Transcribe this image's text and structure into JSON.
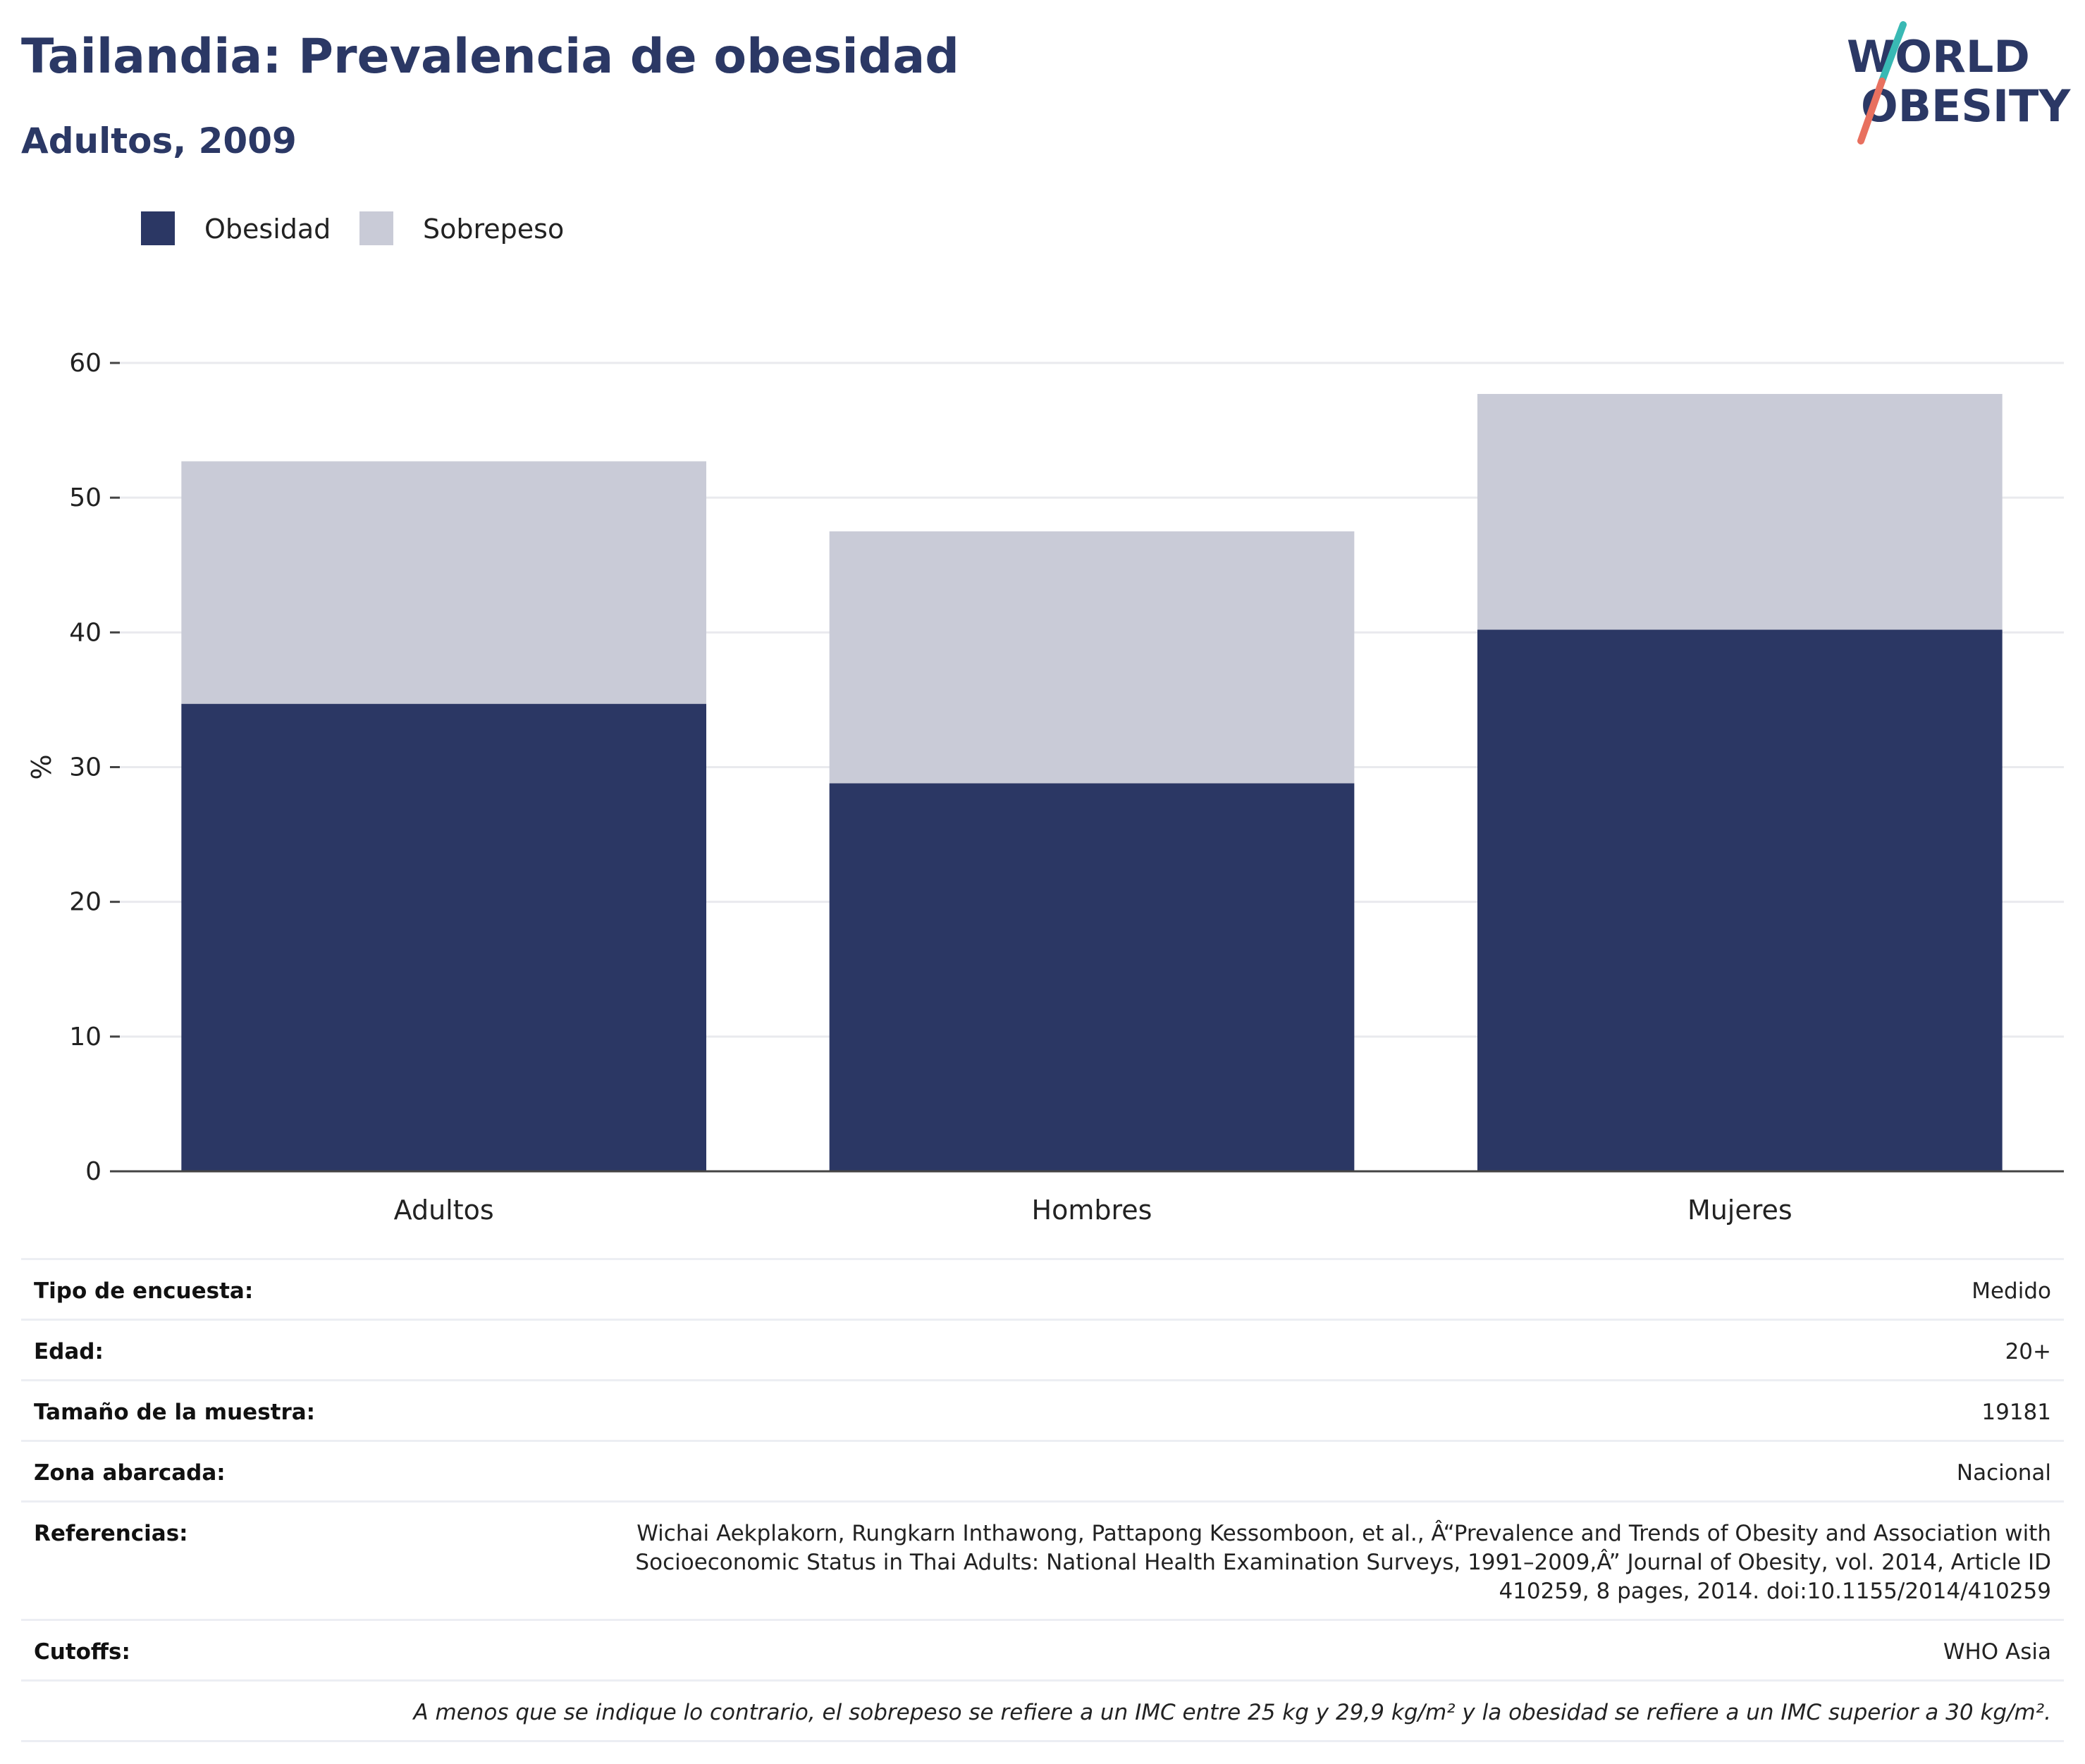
{
  "header": {
    "title": "Tailandia: Prevalencia de obesidad",
    "subtitle": "Adultos, 2009"
  },
  "logo": {
    "line1": "WORLD",
    "line2": "OBESITY",
    "colors": {
      "text": "#2b3865",
      "slash_top": "#39b9b4",
      "slash_bottom": "#e8705f"
    }
  },
  "legend": [
    {
      "label": "Obesidad",
      "color": "#2b3764"
    },
    {
      "label": "Sobrepeso",
      "color": "#c9cbd7"
    }
  ],
  "chart_data": {
    "type": "bar",
    "stacked": true,
    "categories": [
      "Adultos",
      "Hombres",
      "Mujeres"
    ],
    "series": [
      {
        "name": "Obesidad",
        "color": "#2b3764",
        "values": [
          34.7,
          28.8,
          40.2
        ]
      },
      {
        "name": "Sobrepeso",
        "color": "#c9cbd7",
        "values": [
          18.0,
          18.7,
          17.5
        ]
      }
    ],
    "ylabel": "%",
    "xlabel": "",
    "ylim": [
      0,
      60
    ],
    "yticks": [
      0,
      10,
      20,
      30,
      40,
      50,
      60
    ],
    "grid": true,
    "legend_position": "top-left"
  },
  "info": {
    "rows": [
      {
        "label": "Tipo de encuesta:",
        "value": "Medido"
      },
      {
        "label": "Edad:",
        "value": "20+"
      },
      {
        "label": "Tamaño de la muestra:",
        "value": "19181"
      },
      {
        "label": "Zona abarcada:",
        "value": "Nacional"
      },
      {
        "label": "Referencias:",
        "value": "Wichai Aekplakorn, Rungkarn Inthawong, Pattapong Kessomboon, et al., Â“Prevalence and Trends of Obesity and Association with Socioeconomic Status in Thai Adults: National Health Examination Surveys, 1991–2009,Â” Journal of Obesity, vol. 2014, Article ID 410259, 8 pages, 2014. doi:10.1155/2014/410259"
      },
      {
        "label": "Cutoffs:",
        "value": "WHO Asia"
      }
    ],
    "note": "A menos que se indique lo contrario, el sobrepeso se refiere a un IMC entre 25 kg y 29,9 kg/m² y la obesidad se refiere a un IMC superior a 30 kg/m²."
  }
}
